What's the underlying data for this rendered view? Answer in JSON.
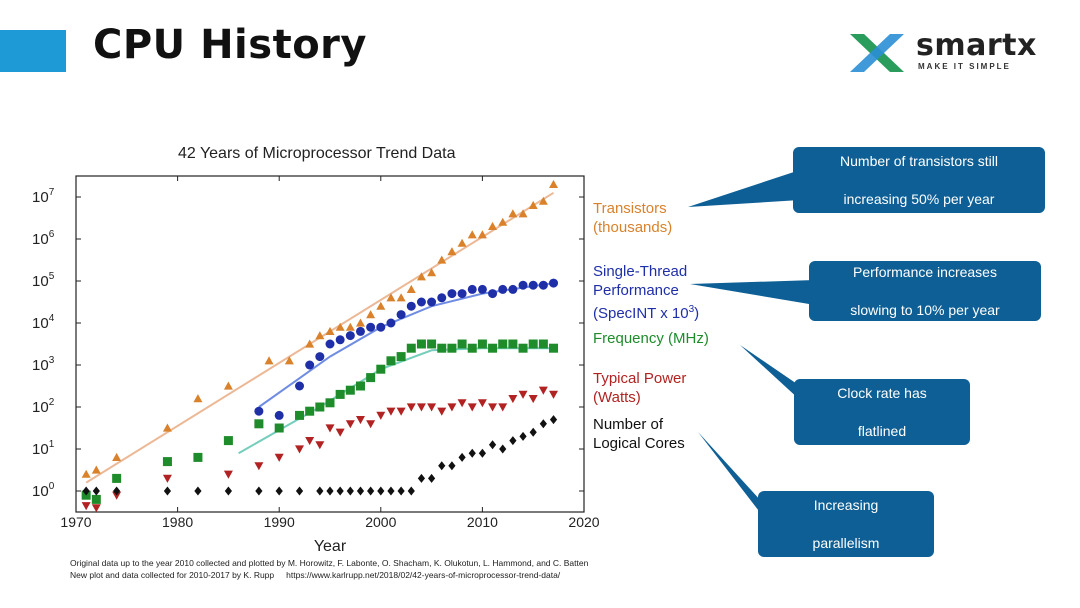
{
  "header": {
    "title": "CPU History"
  },
  "logo": {
    "name": "smartx",
    "tagline": "MAKE IT SIMPLE",
    "colors": [
      "#2a9d5c",
      "#2b8fd6",
      "#1e6fb5"
    ]
  },
  "accent_color": "#1e9bd7",
  "callouts": [
    {
      "lines": [
        "Number of transistors still",
        "increasing 50% per year"
      ]
    },
    {
      "lines": [
        "Performance increases",
        "slowing to 10% per year"
      ]
    },
    {
      "lines": [
        "Clock rate has",
        "flatlined"
      ]
    },
    {
      "lines": [
        "Increasing",
        "parallelism"
      ]
    }
  ],
  "credits": {
    "line1": "Original data up to the year 2010 collected and plotted by M. Horowitz, F. Labonte, O. Shacham, K. Olukotun, L. Hammond, and C. Batten",
    "line2": "New plot and data collected for 2010-2017 by K. Rupp",
    "url": "https://www.karlrupp.net/2018/02/42-years-of-microprocessor-trend-data/"
  },
  "chart_data": {
    "type": "scatter",
    "title": "42 Years of Microprocessor Trend Data",
    "xlabel": "Year",
    "ylabel": "",
    "xlim": [
      1970,
      2020
    ],
    "ylim_log10": [
      -0.5,
      7.5
    ],
    "y_scale": "log",
    "x_ticks": [
      1970,
      1980,
      1990,
      2000,
      2010,
      2020
    ],
    "y_ticks": [
      "10^0",
      "10^1",
      "10^2",
      "10^3",
      "10^4",
      "10^5",
      "10^6",
      "10^7"
    ],
    "series": [
      {
        "name": "Transistors (thousands)",
        "label_lines": [
          "Transistors",
          "(thousands)"
        ],
        "color": "#d9822b",
        "marker": "triangle-up",
        "points": [
          [
            1971,
            0.4
          ],
          [
            1972,
            0.5
          ],
          [
            1974,
            0.8
          ],
          [
            1979,
            1.5
          ],
          [
            1982,
            2.2
          ],
          [
            1985,
            2.5
          ],
          [
            1989,
            3.1
          ],
          [
            1991,
            3.1
          ],
          [
            1993,
            3.5
          ],
          [
            1994,
            3.7
          ],
          [
            1995,
            3.8
          ],
          [
            1996,
            3.9
          ],
          [
            1997,
            3.9
          ],
          [
            1998,
            4.0
          ],
          [
            1999,
            4.2
          ],
          [
            2000,
            4.4
          ],
          [
            2001,
            4.6
          ],
          [
            2002,
            4.6
          ],
          [
            2003,
            4.8
          ],
          [
            2004,
            5.1
          ],
          [
            2005,
            5.2
          ],
          [
            2006,
            5.5
          ],
          [
            2007,
            5.7
          ],
          [
            2008,
            5.9
          ],
          [
            2009,
            6.1
          ],
          [
            2010,
            6.1
          ],
          [
            2011,
            6.3
          ],
          [
            2012,
            6.4
          ],
          [
            2013,
            6.6
          ],
          [
            2014,
            6.6
          ],
          [
            2015,
            6.8
          ],
          [
            2016,
            6.9
          ],
          [
            2017,
            7.3
          ]
        ],
        "trend": [
          [
            1971,
            0.2
          ],
          [
            2017,
            7.1
          ]
        ]
      },
      {
        "name": "Single-Thread Performance (SpecINT x 10^3)",
        "label_lines": [
          "Single-Thread",
          "Performance",
          "(SpecINT x 10",
          "3",
          ")"
        ],
        "color": "#1f2fa8",
        "marker": "circle",
        "points": [
          [
            1988,
            1.9
          ],
          [
            1990,
            1.8
          ],
          [
            1992,
            2.5
          ],
          [
            1993,
            3.0
          ],
          [
            1994,
            3.2
          ],
          [
            1995,
            3.5
          ],
          [
            1996,
            3.6
          ],
          [
            1997,
            3.7
          ],
          [
            1998,
            3.8
          ],
          [
            1999,
            3.9
          ],
          [
            2000,
            3.9
          ],
          [
            2001,
            4.0
          ],
          [
            2002,
            4.2
          ],
          [
            2003,
            4.4
          ],
          [
            2004,
            4.5
          ],
          [
            2005,
            4.5
          ],
          [
            2006,
            4.6
          ],
          [
            2007,
            4.7
          ],
          [
            2008,
            4.7
          ],
          [
            2009,
            4.8
          ],
          [
            2010,
            4.8
          ],
          [
            2011,
            4.7
          ],
          [
            2012,
            4.8
          ],
          [
            2013,
            4.8
          ],
          [
            2014,
            4.9
          ],
          [
            2015,
            4.9
          ],
          [
            2016,
            4.9
          ],
          [
            2017,
            4.95
          ]
        ],
        "trend": [
          [
            1988,
            2.0
          ],
          [
            1995,
            3.2
          ],
          [
            2000,
            3.9
          ],
          [
            2005,
            4.4
          ],
          [
            2010,
            4.7
          ],
          [
            2017,
            4.95
          ]
        ]
      },
      {
        "name": "Frequency (MHz)",
        "label_lines": [
          "Frequency (MHz)"
        ],
        "color": "#1e8c2b",
        "marker": "square",
        "points": [
          [
            1971,
            -0.1
          ],
          [
            1972,
            -0.2
          ],
          [
            1974,
            0.3
          ],
          [
            1979,
            0.7
          ],
          [
            1982,
            0.8
          ],
          [
            1985,
            1.2
          ],
          [
            1988,
            1.6
          ],
          [
            1990,
            1.5
          ],
          [
            1992,
            1.8
          ],
          [
            1993,
            1.9
          ],
          [
            1994,
            2.0
          ],
          [
            1995,
            2.1
          ],
          [
            1996,
            2.3
          ],
          [
            1997,
            2.4
          ],
          [
            1998,
            2.5
          ],
          [
            1999,
            2.7
          ],
          [
            2000,
            2.9
          ],
          [
            2001,
            3.1
          ],
          [
            2002,
            3.2
          ],
          [
            2003,
            3.4
          ],
          [
            2004,
            3.5
          ],
          [
            2005,
            3.5
          ],
          [
            2006,
            3.4
          ],
          [
            2007,
            3.4
          ],
          [
            2008,
            3.5
          ],
          [
            2009,
            3.4
          ],
          [
            2010,
            3.5
          ],
          [
            2011,
            3.4
          ],
          [
            2012,
            3.5
          ],
          [
            2013,
            3.5
          ],
          [
            2014,
            3.4
          ],
          [
            2015,
            3.5
          ],
          [
            2016,
            3.5
          ],
          [
            2017,
            3.4
          ]
        ],
        "trend": [
          [
            1986,
            0.9
          ],
          [
            1994,
            2.0
          ],
          [
            2000,
            2.9
          ],
          [
            2005,
            3.35
          ],
          [
            2010,
            3.4
          ],
          [
            2017,
            3.4
          ]
        ]
      },
      {
        "name": "Typical Power (Watts)",
        "label_lines": [
          "Typical Power",
          "(Watts)"
        ],
        "color": "#b22222",
        "marker": "triangle-down",
        "points": [
          [
            1971,
            -0.35
          ],
          [
            1972,
            -0.4
          ],
          [
            1974,
            -0.1
          ],
          [
            1979,
            0.3
          ],
          [
            1985,
            0.4
          ],
          [
            1988,
            0.6
          ],
          [
            1990,
            0.8
          ],
          [
            1992,
            1.0
          ],
          [
            1993,
            1.2
          ],
          [
            1994,
            1.1
          ],
          [
            1995,
            1.5
          ],
          [
            1996,
            1.4
          ],
          [
            1997,
            1.6
          ],
          [
            1998,
            1.7
          ],
          [
            1999,
            1.6
          ],
          [
            2000,
            1.8
          ],
          [
            2001,
            1.9
          ],
          [
            2002,
            1.9
          ],
          [
            2003,
            2.0
          ],
          [
            2004,
            2.0
          ],
          [
            2005,
            2.0
          ],
          [
            2006,
            1.9
          ],
          [
            2007,
            2.0
          ],
          [
            2008,
            2.1
          ],
          [
            2009,
            2.0
          ],
          [
            2010,
            2.1
          ],
          [
            2011,
            2.0
          ],
          [
            2012,
            2.0
          ],
          [
            2013,
            2.2
          ],
          [
            2014,
            2.3
          ],
          [
            2015,
            2.2
          ],
          [
            2016,
            2.4
          ],
          [
            2017,
            2.3
          ]
        ]
      },
      {
        "name": "Number of Logical Cores",
        "label_lines": [
          "Number of",
          "Logical Cores"
        ],
        "color": "#111111",
        "marker": "diamond",
        "points": [
          [
            1971,
            0
          ],
          [
            1972,
            0
          ],
          [
            1974,
            0
          ],
          [
            1979,
            0
          ],
          [
            1982,
            0
          ],
          [
            1985,
            0
          ],
          [
            1988,
            0
          ],
          [
            1990,
            0
          ],
          [
            1992,
            0
          ],
          [
            1994,
            0
          ],
          [
            1995,
            0
          ],
          [
            1996,
            0
          ],
          [
            1997,
            0
          ],
          [
            1998,
            0
          ],
          [
            1999,
            0
          ],
          [
            2000,
            0
          ],
          [
            2001,
            0
          ],
          [
            2002,
            0
          ],
          [
            2003,
            0
          ],
          [
            2004,
            0.3
          ],
          [
            2005,
            0.3
          ],
          [
            2006,
            0.6
          ],
          [
            2007,
            0.6
          ],
          [
            2008,
            0.8
          ],
          [
            2009,
            0.9
          ],
          [
            2010,
            0.9
          ],
          [
            2011,
            1.1
          ],
          [
            2012,
            1.0
          ],
          [
            2013,
            1.2
          ],
          [
            2014,
            1.3
          ],
          [
            2015,
            1.4
          ],
          [
            2016,
            1.6
          ],
          [
            2017,
            1.7
          ]
        ]
      }
    ]
  }
}
